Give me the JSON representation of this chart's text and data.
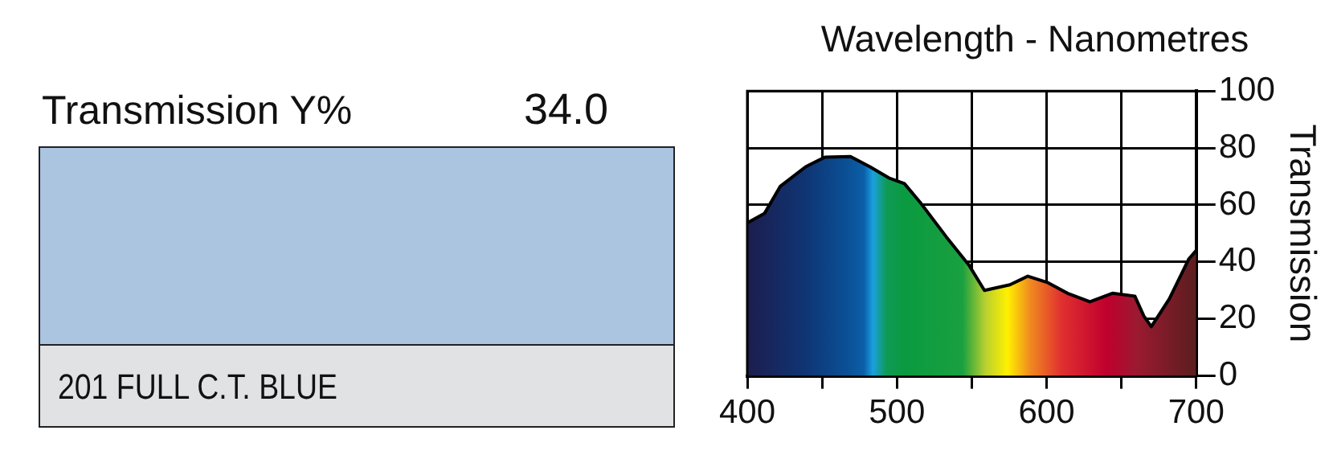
{
  "chart_data": {
    "type": "area",
    "title": "Wavelength - Nanometres",
    "ylabel": "Transmission",
    "annotations": [
      "Transmission Y%",
      "34.0",
      "201 FULL C.T. BLUE"
    ],
    "series": [
      {
        "color": "#000000",
        "x": [
          400,
          411.5,
          422,
          439,
          452,
          469,
          482,
          494.6,
          505,
          516,
          533,
          548,
          558.5,
          575.5,
          587.5,
          601,
          614,
          629,
          644,
          659,
          665,
          670,
          682,
          695,
          700
        ],
        "values": [
          53.7,
          57,
          66.5,
          73.4,
          76.8,
          77,
          73.4,
          69.5,
          67.5,
          60.6,
          48.8,
          39,
          30,
          32,
          35,
          32.7,
          29,
          26,
          29,
          28,
          21,
          17.3,
          27,
          41,
          44
        ]
      }
    ],
    "xlim": [
      400,
      700
    ],
    "xticks": [
      400,
      {
        "value": 450,
        "label": null
      },
      500,
      {
        "value": 550,
        "label": null
      },
      600,
      {
        "value": 650,
        "label": null
      },
      700
    ],
    "ylim": [
      0,
      100
    ],
    "yticks": [
      0,
      20,
      40,
      60,
      80,
      100
    ],
    "grid": true,
    "legend": false
  }
}
